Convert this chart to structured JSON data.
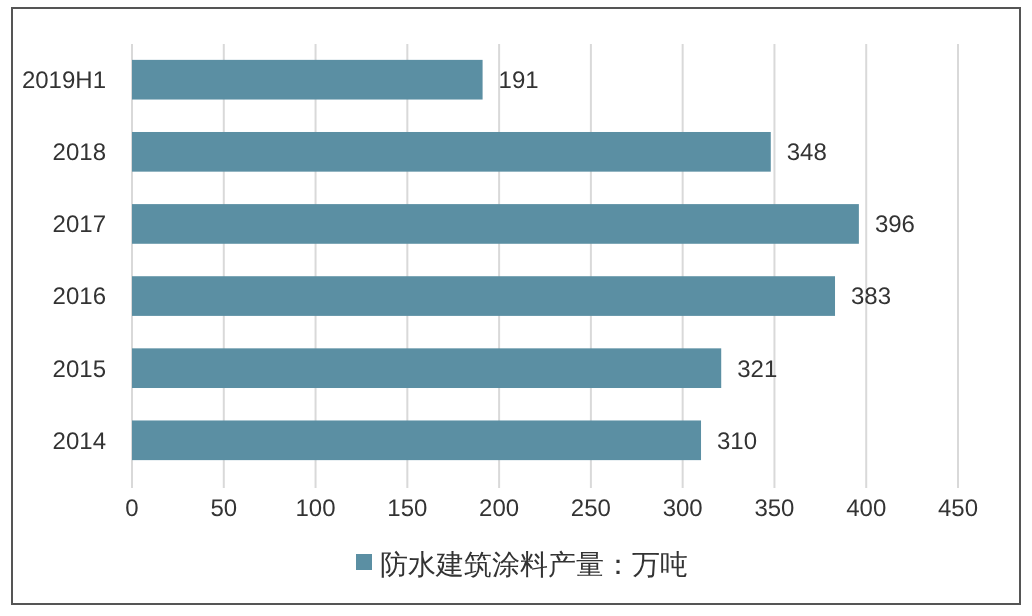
{
  "chart_data": {
    "type": "bar",
    "orientation": "horizontal",
    "categories": [
      "2019H1",
      "2018",
      "2017",
      "2016",
      "2015",
      "2014"
    ],
    "series": [
      {
        "name": "防水建筑涂料产量：万吨",
        "color": "#5b8fa3",
        "values": [
          191,
          348,
          396,
          383,
          321,
          310
        ]
      }
    ],
    "xlim": [
      0,
      450
    ],
    "xticks": [
      0,
      50,
      100,
      150,
      200,
      250,
      300,
      350,
      400,
      450
    ],
    "grid": "x",
    "legend": "bottom",
    "data_labels": true
  }
}
